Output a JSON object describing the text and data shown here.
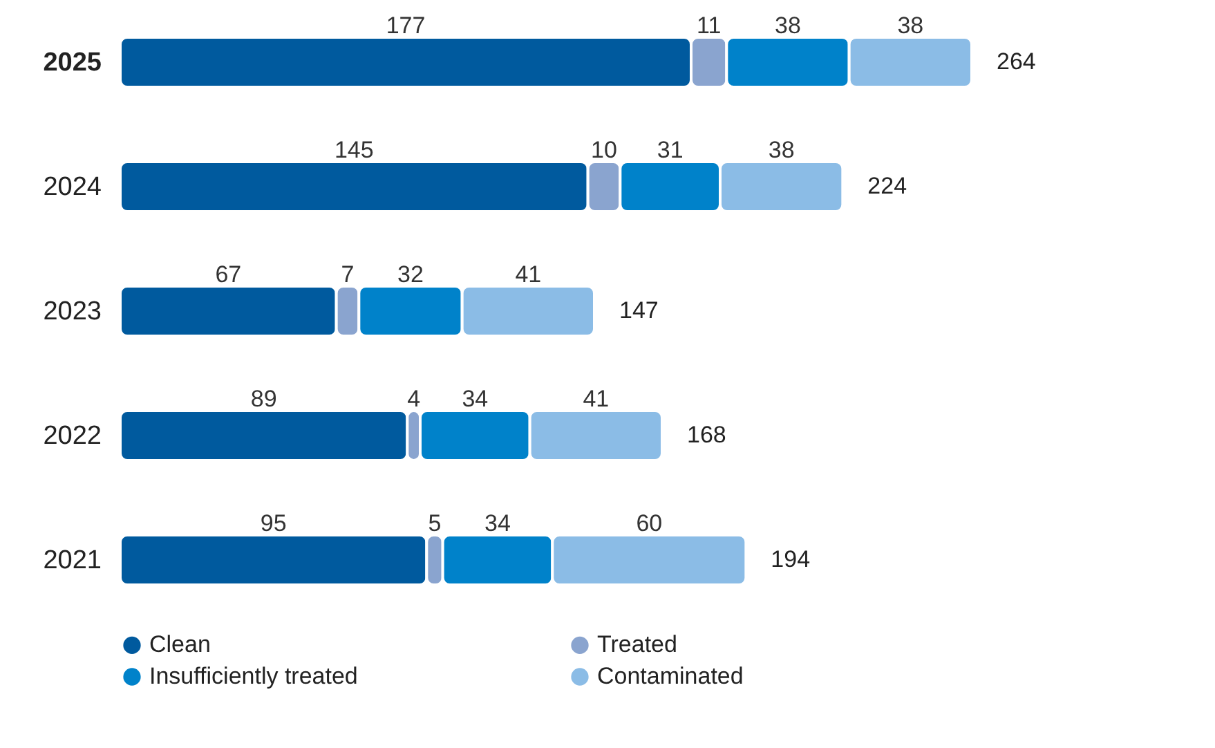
{
  "chart_data": {
    "type": "bar",
    "orientation": "horizontal",
    "stacked": true,
    "categories": [
      "2025",
      "2024",
      "2023",
      "2022",
      "2021"
    ],
    "series": [
      {
        "name": "Clean",
        "color": "#005a9e",
        "values": [
          177,
          145,
          67,
          89,
          95
        ]
      },
      {
        "name": "Treated",
        "color": "#8aa4cf",
        "values": [
          11,
          10,
          7,
          4,
          5
        ]
      },
      {
        "name": "Insufficiently treated",
        "color": "#0082ca",
        "values": [
          38,
          31,
          32,
          34,
          34
        ]
      },
      {
        "name": "Contaminated",
        "color": "#8bbce6",
        "values": [
          38,
          38,
          41,
          41,
          60
        ]
      }
    ],
    "data_labels": true,
    "totals": [
      "264",
      "224",
      "147",
      "168",
      "194"
    ],
    "xlim": [
      0,
      300
    ],
    "tick_labels": "y",
    "grid": false,
    "legend": "bottom"
  }
}
